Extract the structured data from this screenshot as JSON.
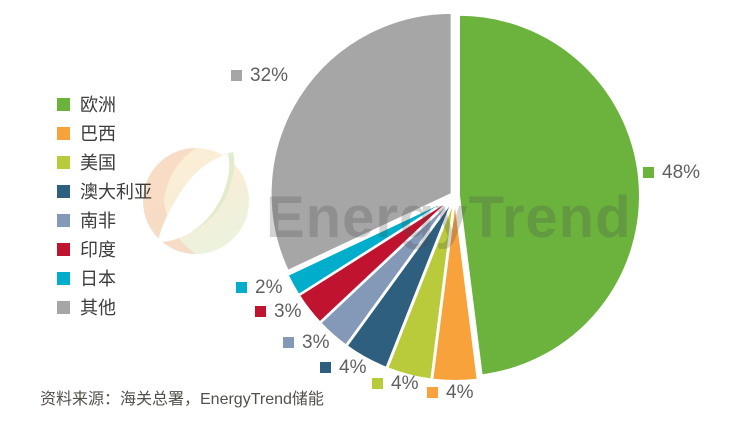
{
  "watermark": {
    "brand": "EnergyTrend"
  },
  "source_note": "资料来源：海关总署，EnergyTrend储能",
  "chart_data": {
    "type": "pie",
    "title": "",
    "start_angle_deg": 0,
    "direction": "clockwise",
    "legend_position": "left",
    "total": 100,
    "slices": [
      {
        "name": "欧洲",
        "value": 48,
        "label": "48%",
        "color": "#6cb33e"
      },
      {
        "name": "巴西",
        "value": 4,
        "label": "4%",
        "color": "#f7a23b"
      },
      {
        "name": "美国",
        "value": 4,
        "label": "4%",
        "color": "#b9cb3a"
      },
      {
        "name": "澳大利亚",
        "value": 4,
        "label": "4%",
        "color": "#2e5f7f"
      },
      {
        "name": "南非",
        "value": 3,
        "label": "3%",
        "color": "#8499b8"
      },
      {
        "name": "印度",
        "value": 3,
        "label": "3%",
        "color": "#c01330"
      },
      {
        "name": "日本",
        "value": 2,
        "label": "2%",
        "color": "#00aecb"
      },
      {
        "name": "其他",
        "value": 32,
        "label": "32%",
        "color": "#a6a6a6"
      }
    ]
  }
}
